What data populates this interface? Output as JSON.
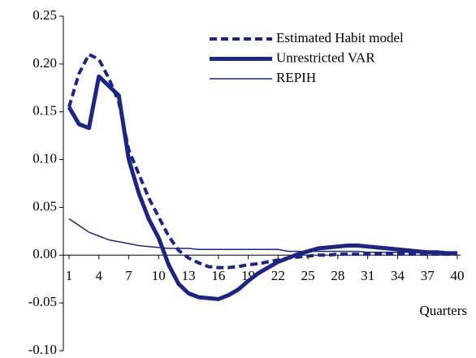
{
  "chart_data": {
    "type": "line",
    "x_label": "Quarters",
    "x": [
      1,
      2,
      3,
      4,
      5,
      6,
      7,
      8,
      9,
      10,
      11,
      12,
      13,
      14,
      15,
      16,
      17,
      18,
      19,
      20,
      21,
      22,
      23,
      24,
      25,
      26,
      27,
      28,
      29,
      30,
      31,
      32,
      33,
      34,
      35,
      36,
      37,
      38,
      39,
      40
    ],
    "xlim": [
      1,
      40
    ],
    "xticks": [
      1,
      4,
      7,
      10,
      13,
      16,
      19,
      22,
      25,
      28,
      31,
      34,
      37,
      40
    ],
    "ylim": [
      -0.1,
      0.25
    ],
    "yticks": [
      {
        "value": -0.1,
        "label": "-0.10"
      },
      -0.05,
      {
        "value": 0,
        "label": "0.00"
      },
      0.05,
      {
        "value": 0.1,
        "label": "0.10"
      },
      0.15,
      {
        "value": 0.2,
        "label": "0.20"
      },
      0.25
    ],
    "legend": "top-right",
    "series": [
      {
        "name": "Estimated Habit model",
        "color": "#1c2580",
        "style": "dashed",
        "values": [
          0.155,
          0.19,
          0.21,
          0.205,
          0.185,
          0.16,
          0.11,
          0.085,
          0.06,
          0.04,
          0.02,
          0.005,
          -0.003,
          -0.008,
          -0.012,
          -0.013,
          -0.013,
          -0.012,
          -0.01,
          -0.009,
          -0.007,
          -0.005,
          -0.003,
          -0.002,
          -0.001,
          0,
          0,
          0.001,
          0.001,
          0.001,
          0.001,
          0.001,
          0.001,
          0.001,
          0.001,
          0.001,
          0.001,
          0.001,
          0.001,
          0.001
        ]
      },
      {
        "name": "Unrestricted VAR",
        "color": "#1c2580",
        "style": "bold",
        "values": [
          0.155,
          0.137,
          0.133,
          0.187,
          0.177,
          0.167,
          0.1,
          0.065,
          0.038,
          0.018,
          -0.01,
          -0.03,
          -0.04,
          -0.044,
          -0.045,
          -0.046,
          -0.042,
          -0.036,
          -0.027,
          -0.019,
          -0.013,
          -0.007,
          -0.003,
          0.001,
          0.004,
          0.007,
          0.008,
          0.009,
          0.01,
          0.01,
          0.009,
          0.008,
          0.007,
          0.006,
          0.005,
          0.004,
          0.003,
          0.003,
          0.002,
          0.002
        ]
      },
      {
        "name": "REPIH",
        "color": "#1c2580",
        "style": "thin",
        "values": [
          0.038,
          0.031,
          0.024,
          0.02,
          0.016,
          0.014,
          0.012,
          0.01,
          0.009,
          0.008,
          0.007,
          0.007,
          0.007,
          0.006,
          0.006,
          0.006,
          0.006,
          0.006,
          0.006,
          0.006,
          0.006,
          0.006,
          0.004,
          0.004,
          0.004,
          0.004,
          0.004,
          0.004,
          0.004,
          0.004,
          0.003,
          0.003,
          0.003,
          0.003,
          0.003,
          0.003,
          0.002,
          0.002,
          0.002,
          0.002
        ]
      }
    ]
  }
}
